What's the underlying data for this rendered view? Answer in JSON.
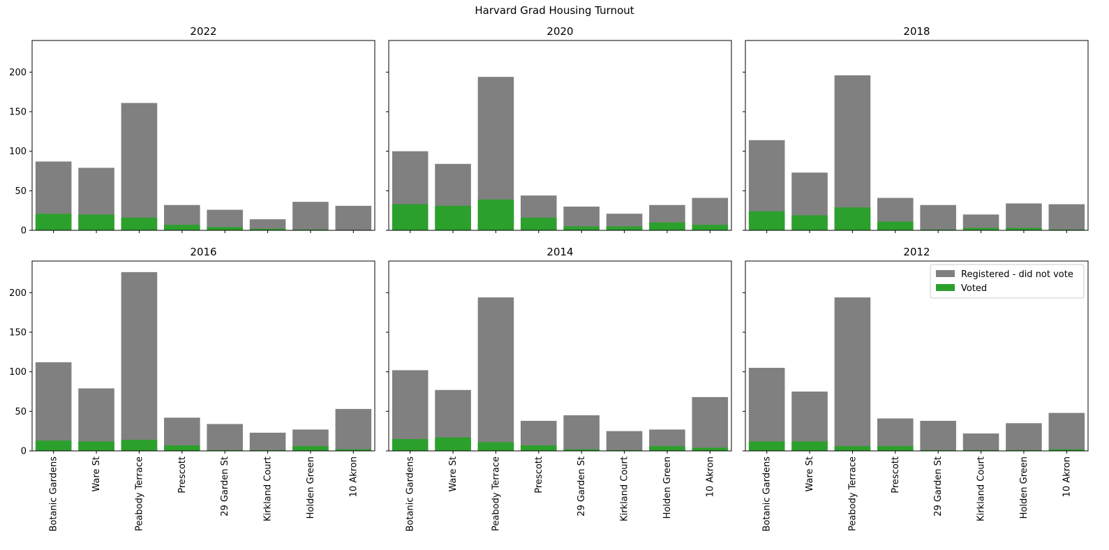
{
  "figure": {
    "title": "Harvard Grad Housing Turnout"
  },
  "chart_data": {
    "type": "bar",
    "stacked": true,
    "layout": "2x3 small multiples, shared axes",
    "categories": [
      "Botanic Gardens",
      "Ware St",
      "Peabody Terrace",
      "Prescott",
      "29 Garden St",
      "Kirkland Court",
      "Holden Green",
      "10 Akron"
    ],
    "ylim": [
      0,
      240
    ],
    "yticks": [
      0,
      50,
      100,
      150,
      200
    ],
    "grid": false,
    "legend": {
      "placement": "top-right of 2012 panel",
      "entries": [
        {
          "label": "Registered - did not vote",
          "color": "#808080"
        },
        {
          "label": "Voted",
          "color": "#2ca02c"
        }
      ]
    },
    "colors": {
      "registered_did_not_vote": "#808080",
      "voted": "#2ca02c"
    },
    "panels": [
      {
        "title": "2022",
        "total": [
          87,
          79,
          161,
          32,
          26,
          14,
          36,
          31
        ],
        "voted": [
          21,
          20,
          16,
          7,
          4,
          2,
          1,
          0
        ]
      },
      {
        "title": "2020",
        "total": [
          100,
          84,
          194,
          44,
          30,
          21,
          32,
          41
        ],
        "voted": [
          33,
          31,
          39,
          16,
          5,
          5,
          10,
          7
        ]
      },
      {
        "title": "2018",
        "total": [
          114,
          73,
          196,
          41,
          32,
          20,
          34,
          33
        ],
        "voted": [
          24,
          19,
          29,
          11,
          1,
          3,
          3,
          1
        ]
      },
      {
        "title": "2016",
        "total": [
          112,
          79,
          226,
          42,
          34,
          23,
          27,
          53
        ],
        "voted": [
          13,
          12,
          14,
          7,
          1,
          1,
          6,
          2
        ]
      },
      {
        "title": "2014",
        "total": [
          102,
          77,
          194,
          38,
          45,
          25,
          27,
          68
        ],
        "voted": [
          15,
          17,
          11,
          7,
          2,
          1,
          6,
          4
        ]
      },
      {
        "title": "2012",
        "total": [
          105,
          75,
          194,
          41,
          38,
          22,
          35,
          48
        ],
        "voted": [
          12,
          12,
          6,
          6,
          1,
          1,
          1,
          2
        ]
      }
    ]
  }
}
